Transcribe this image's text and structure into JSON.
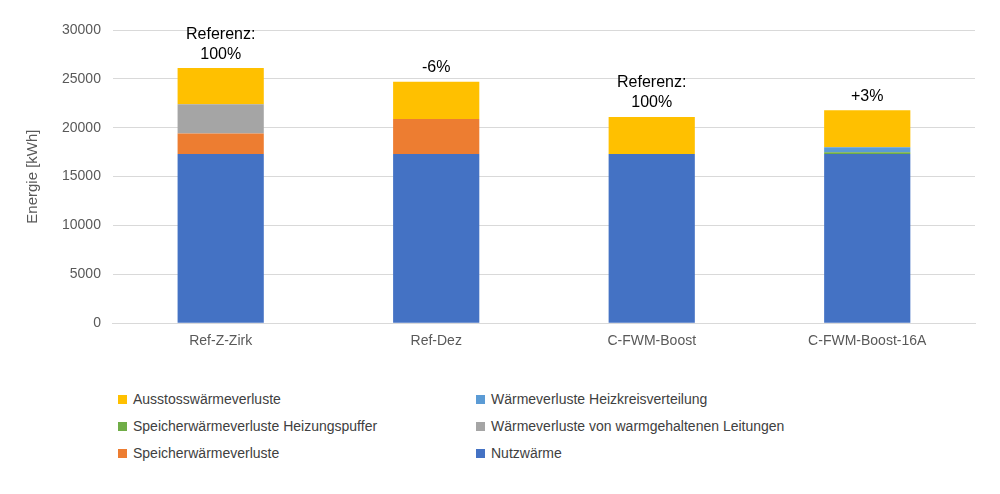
{
  "chart_data": {
    "type": "bar",
    "stacked": true,
    "y_label": "Energie [kWh]",
    "categories": [
      "Ref-Z-Zirk",
      "Ref-Dez",
      "C-FWM-Boost",
      "C-FWM-Boost-16A"
    ],
    "series": [
      {
        "name": "Nutzwärme",
        "color": "#4472c4",
        "values": [
          17300,
          17300,
          17300,
          17300
        ]
      },
      {
        "name": "Speicherwärmeverluste",
        "color": "#ed7d31",
        "values": [
          2100,
          3600,
          0,
          0
        ]
      },
      {
        "name": "Speicherwärmeverluste Heizungspuffer",
        "color": "#70ad47",
        "values": [
          0,
          0,
          0,
          200
        ]
      },
      {
        "name": "Wärmeverluste Heizkreisverteilung",
        "color": "#5b9bd5",
        "values": [
          0,
          0,
          0,
          500
        ]
      },
      {
        "name": "Wärmeverluste von warmgehaltenen Leitungen",
        "color": "#a5a5a5",
        "values": [
          3000,
          0,
          0,
          0
        ]
      },
      {
        "name": "Ausstosswärmeverluste",
        "color": "#ffc000",
        "values": [
          3700,
          3800,
          3800,
          3800
        ]
      }
    ],
    "annotations": [
      {
        "category": "Ref-Z-Zirk",
        "text": [
          "Referenz:",
          "100%"
        ]
      },
      {
        "category": "Ref-Dez",
        "text": [
          "-6%"
        ]
      },
      {
        "category": "C-FWM-Boost",
        "text": [
          "Referenz:",
          "100%"
        ]
      },
      {
        "category": "C-FWM-Boost-16A",
        "text": [
          "+3%"
        ]
      }
    ],
    "ylim": [
      0,
      30000
    ],
    "yticks": [
      0,
      5000,
      10000,
      15000,
      20000,
      25000,
      30000
    ],
    "grid": true,
    "legend": "bottom"
  }
}
